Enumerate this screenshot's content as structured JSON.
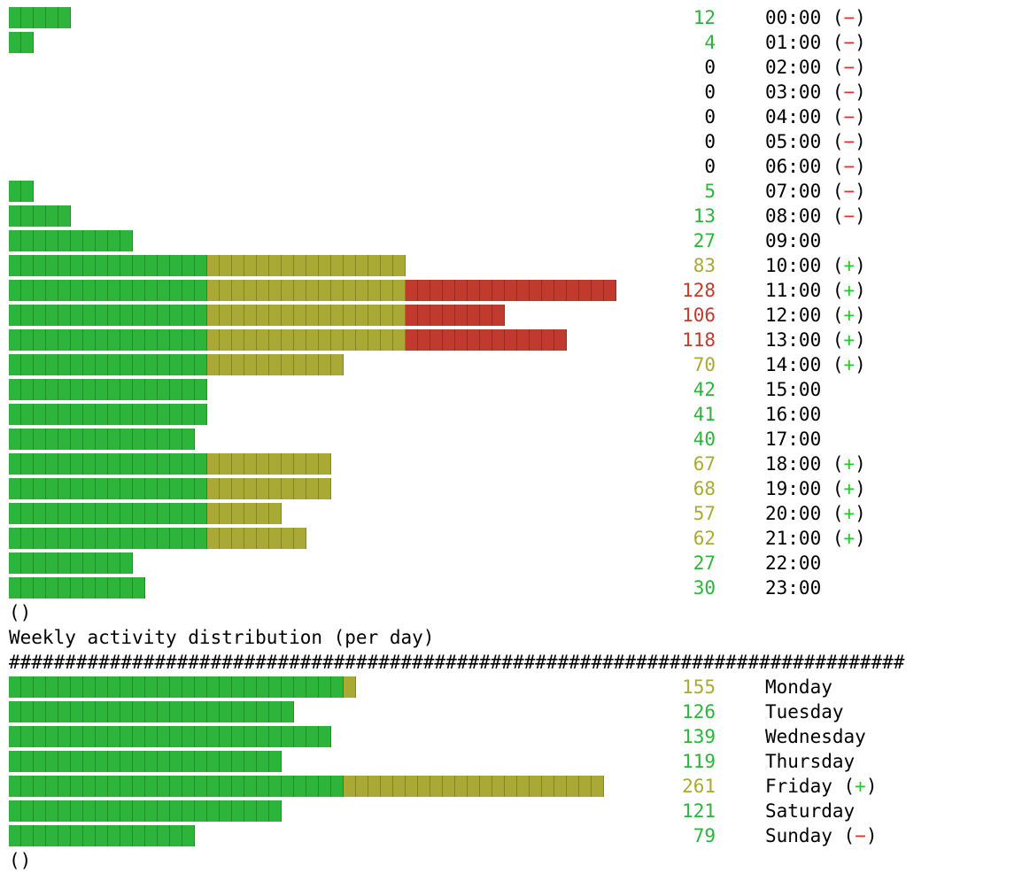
{
  "colors": {
    "green": "#2db43a",
    "olive": "#a9aa35",
    "red": "#c13a2e",
    "plus": "#25c72b",
    "minus": "#e2322b",
    "text": "#000000"
  },
  "hourly": [
    {
      "label": "00:00",
      "count": 12,
      "tag": "−"
    },
    {
      "label": "01:00",
      "count": 4,
      "tag": "−"
    },
    {
      "label": "02:00",
      "count": 0,
      "tag": "−"
    },
    {
      "label": "03:00",
      "count": 0,
      "tag": "−"
    },
    {
      "label": "04:00",
      "count": 0,
      "tag": "−"
    },
    {
      "label": "05:00",
      "count": 0,
      "tag": "−"
    },
    {
      "label": "06:00",
      "count": 0,
      "tag": "−"
    },
    {
      "label": "07:00",
      "count": 5,
      "tag": "−"
    },
    {
      "label": "08:00",
      "count": 13,
      "tag": "−"
    },
    {
      "label": "09:00",
      "count": 27,
      "tag": ""
    },
    {
      "label": "10:00",
      "count": 83,
      "tag": "+"
    },
    {
      "label": "11:00",
      "count": 128,
      "tag": "+"
    },
    {
      "label": "12:00",
      "count": 106,
      "tag": "+"
    },
    {
      "label": "13:00",
      "count": 118,
      "tag": "+"
    },
    {
      "label": "14:00",
      "count": 70,
      "tag": "+"
    },
    {
      "label": "15:00",
      "count": 42,
      "tag": ""
    },
    {
      "label": "16:00",
      "count": 41,
      "tag": ""
    },
    {
      "label": "17:00",
      "count": 40,
      "tag": ""
    },
    {
      "label": "18:00",
      "count": 67,
      "tag": "+"
    },
    {
      "label": "19:00",
      "count": 68,
      "tag": "+"
    },
    {
      "label": "20:00",
      "count": 57,
      "tag": "+"
    },
    {
      "label": "21:00",
      "count": 62,
      "tag": "+"
    },
    {
      "label": "22:00",
      "count": 27,
      "tag": ""
    },
    {
      "label": "23:00",
      "count": 30,
      "tag": ""
    }
  ],
  "hourly_end_marker": "()",
  "weekly_title": "Weekly activity distribution (per day)",
  "weekly_rule": "################################################################################",
  "weekly": [
    {
      "label": "Monday",
      "count": 155,
      "tag": ""
    },
    {
      "label": "Tuesday",
      "count": 126,
      "tag": ""
    },
    {
      "label": "Wednesday",
      "count": 139,
      "tag": ""
    },
    {
      "label": "Thursday",
      "count": 119,
      "tag": ""
    },
    {
      "label": "Friday",
      "count": 261,
      "tag": "+"
    },
    {
      "label": "Saturday",
      "count": 121,
      "tag": ""
    },
    {
      "label": "Sunday",
      "count": 79,
      "tag": "−"
    }
  ],
  "weekly_end_marker": "()"
}
